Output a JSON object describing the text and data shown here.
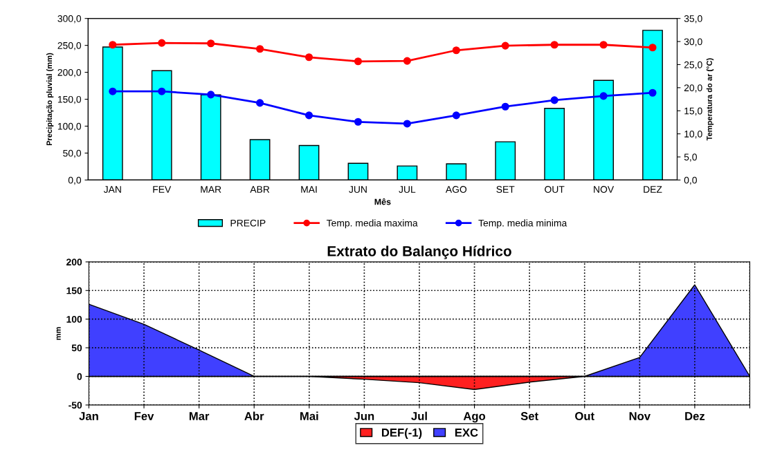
{
  "chart_data": [
    {
      "type": "bar",
      "categories": [
        "JAN",
        "FEV",
        "MAR",
        "ABR",
        "MAI",
        "JUN",
        "JUL",
        "AGO",
        "SET",
        "OUT",
        "NOV",
        "DEZ"
      ],
      "xlabel": "Mês",
      "ylabel": "Precipitação pluvial (mm)",
      "y2label": "Temperatura do ar (°C)",
      "series": [
        {
          "name": "PRECIP",
          "type": "bar",
          "color": "#00ffff",
          "values": [
            247,
            203,
            158,
            75,
            64,
            31,
            26,
            30,
            71,
            133,
            185,
            278
          ]
        },
        {
          "name": "Temp. media maxima",
          "type": "line",
          "axis": "y2",
          "marker": "circle",
          "color": "#ff0000",
          "values": [
            29.3,
            29.7,
            29.6,
            28.4,
            26.6,
            25.7,
            25.8,
            28.1,
            29.1,
            29.3,
            29.3,
            28.7
          ]
        },
        {
          "name": "Temp. media minima",
          "type": "line",
          "axis": "y2",
          "marker": "circle",
          "color": "#0000ff",
          "values": [
            19.2,
            19.2,
            18.5,
            16.7,
            14.0,
            12.6,
            12.2,
            14.0,
            15.9,
            17.3,
            18.2,
            18.9
          ]
        }
      ],
      "ylim": [
        0,
        300
      ],
      "yticks": [
        {
          "value": 0,
          "label": "0,0"
        },
        {
          "value": 50,
          "label": "50,0"
        },
        {
          "value": 100,
          "label": "100,0"
        },
        {
          "value": 150,
          "label": "150,0"
        },
        {
          "value": 200,
          "label": "200,0"
        },
        {
          "value": 250,
          "label": "250,0"
        },
        {
          "value": 300,
          "label": "300,0"
        }
      ],
      "y2lim": [
        0,
        35
      ],
      "y2ticks": [
        {
          "value": 0,
          "label": "0,0"
        },
        {
          "value": 5,
          "label": "5,0"
        },
        {
          "value": 10,
          "label": "10,0"
        },
        {
          "value": 15,
          "label": "15,0"
        },
        {
          "value": 20,
          "label": "20,0"
        },
        {
          "value": 25,
          "label": "25,0"
        },
        {
          "value": 30,
          "label": "30,0"
        },
        {
          "value": 35,
          "label": "35,0"
        }
      ],
      "grid": false,
      "legend": "bottom"
    },
    {
      "type": "area",
      "title": "Extrato do Balanço Hídrico",
      "ylabel": "mm",
      "categories": [
        "Jan",
        "Fev",
        "Mar",
        "Abr",
        "Mai",
        "Jun",
        "Jul",
        "Ago",
        "Set",
        "Out",
        "Nov",
        "Dez",
        null
      ],
      "series": [
        {
          "name": "DEF(-1)",
          "color": "#ff2020",
          "values": [
            0,
            0,
            0,
            0,
            0,
            -5,
            -11,
            -23,
            -10,
            0,
            0,
            0,
            0
          ]
        },
        {
          "name": "EXC",
          "color": "#4040ff",
          "values": [
            126,
            91,
            46,
            0,
            0,
            0,
            0,
            0,
            0,
            0,
            33,
            160,
            0
          ]
        }
      ],
      "ylim": [
        -50,
        200
      ],
      "yticks": [
        -50,
        0,
        50,
        100,
        150,
        200
      ],
      "grid": true,
      "legend": "bottom"
    }
  ]
}
